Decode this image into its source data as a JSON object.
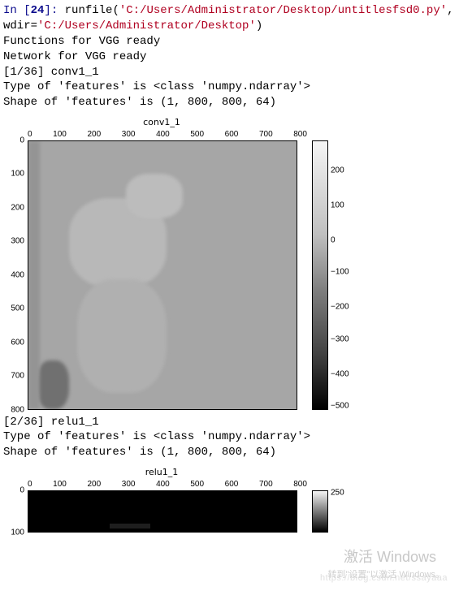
{
  "prompt": {
    "in_label": "In [",
    "num": "24",
    "close": "]: "
  },
  "code": {
    "fn": "runfile",
    "arg1": "'C:/Users/Administrator/Desktop/untitlesfsd0.py'",
    "kw": ", wdir=",
    "arg2": "'C:/Users/Administrator/Desktop'",
    "tail": ")"
  },
  "out1": "Functions for VGG ready",
  "out2": "Network for VGG ready",
  "out3": "[1/36] conv1_1",
  "out4": " Type of 'features' is  <class 'numpy.ndarray'>",
  "out5": " Shape of 'features' is (1, 800, 800, 64)",
  "plot1": {
    "title": "conv1_1",
    "x_ticks": [
      "0",
      "100",
      "200",
      "300",
      "400",
      "500",
      "600",
      "700",
      "800"
    ],
    "y_ticks": [
      "0",
      "100",
      "200",
      "300",
      "400",
      "500",
      "600",
      "700",
      "800"
    ],
    "colorbar_ticks": [
      {
        "label": "200",
        "pos_pct": 11
      },
      {
        "label": "100",
        "pos_pct": 24
      },
      {
        "label": "0",
        "pos_pct": 37
      },
      {
        "label": "−100",
        "pos_pct": 49
      },
      {
        "label": "−200",
        "pos_pct": 62
      },
      {
        "label": "−300",
        "pos_pct": 74
      },
      {
        "label": "−400",
        "pos_pct": 87
      },
      {
        "label": "−500",
        "pos_pct": 99
      }
    ],
    "value_range": [
      -500,
      250
    ],
    "img_bg": "#a6a6a6",
    "border": "#000000",
    "title_fontsize": 11,
    "tick_fontsize": 10
  },
  "out6": "[2/36] relu1_1",
  "out7": " Type of 'features' is  <class 'numpy.ndarray'>",
  "out8": " Shape of 'features' is (1, 800, 800, 64)",
  "plot2": {
    "title": "relu1_1",
    "x_ticks": [
      "0",
      "100",
      "200",
      "300",
      "400",
      "500",
      "600",
      "700",
      "800"
    ],
    "y_ticks": [
      "0",
      "100"
    ],
    "colorbar_ticks": [
      {
        "label": "250",
        "pos_pct": 5
      }
    ],
    "img_bg": "#000000",
    "title_fontsize": 11,
    "tick_fontsize": 10
  },
  "watermark": {
    "line1": "激活 Windows",
    "line2": "转到\"设置\"以激活 Windows。",
    "csdn": "https://blog.csdn.net/ssayaaa"
  }
}
